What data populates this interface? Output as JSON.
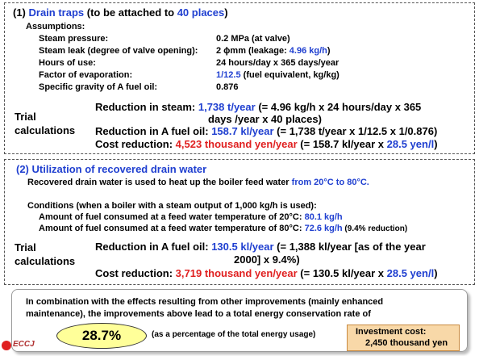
{
  "section1": {
    "heading": [
      "(1) ",
      "Drain traps",
      " (to be attached to ",
      "40 places",
      ")"
    ],
    "assumptions_label": "Assumptions:",
    "assumptions": [
      {
        "label": "Steam pressure:",
        "value": [
          "0.2 MPa (at valve)"
        ]
      },
      {
        "label": "Steam leak (degree of valve opening):",
        "value": [
          "2 ϕmm (leakage: ",
          "4.96 kg/h",
          ")"
        ]
      },
      {
        "label": "Hours of use:",
        "value": [
          "24 hours/day x 365 days/year"
        ]
      },
      {
        "label": "Factor of evaporation:",
        "value": [
          "1/12.5",
          " (fuel equivalent, kg/kg)"
        ]
      },
      {
        "label": "Specific gravity of A fuel oil:",
        "value": [
          "0.876"
        ]
      }
    ],
    "trial_label": "Trial calculations",
    "calculations": [
      [
        "Reduction in steam: ",
        "1,738 t/year",
        " (= 4.96 kg/h x 24 hours/day x 365",
        "days /year x 40 places)"
      ],
      [
        "Reduction in A fuel oil: ",
        "158.7 kl/year",
        " (= 1,738 t/year x 1/12.5 x 1/0.876)"
      ],
      [
        "Cost reduction: ",
        "4,523 thousand yen/year",
        " (= 158.7 kl/year x ",
        "28.5 yen/l",
        ")"
      ]
    ]
  },
  "section2": {
    "heading": "(2) Utilization of recovered drain water",
    "intro": [
      "Recovered drain water is used to heat up the boiler feed water ",
      "from 20°C to 80°C."
    ],
    "conditions": "Conditions (when a boiler with a steam output of 1,000 kg/h is used):",
    "amounts": [
      [
        "Amount of fuel consumed at a feed water temperature of 20°C: ",
        "80.1 kg/h"
      ],
      [
        "Amount of fuel consumed at a feed water temperature of 80°C: ",
        "72.6 kg/h",
        " (9.4% reduction)"
      ]
    ],
    "trial_label": "Trial calculations",
    "calculations": [
      [
        "Reduction in A fuel oil: ",
        "130.5 kl/year",
        " (= 1,388 kl/year [as of the year",
        "2000] x 9.4%)"
      ],
      [
        "Cost reduction: ",
        "3,719 thousand yen/year",
        " (= 130.5 kl/year x ",
        "28.5 yen/l",
        ")"
      ]
    ]
  },
  "summary": {
    "text": [
      "In combination with the effects resulting from other improvements (mainly enhanced",
      "maintenance), the improvements above lead to a total energy conservation rate of"
    ],
    "rate": "28.7%",
    "rate_note": "(as a percentage of the total energy usage)",
    "investment": [
      "Investment cost:",
      "2,450 thousand yen"
    ]
  },
  "logo": "ECCJ"
}
